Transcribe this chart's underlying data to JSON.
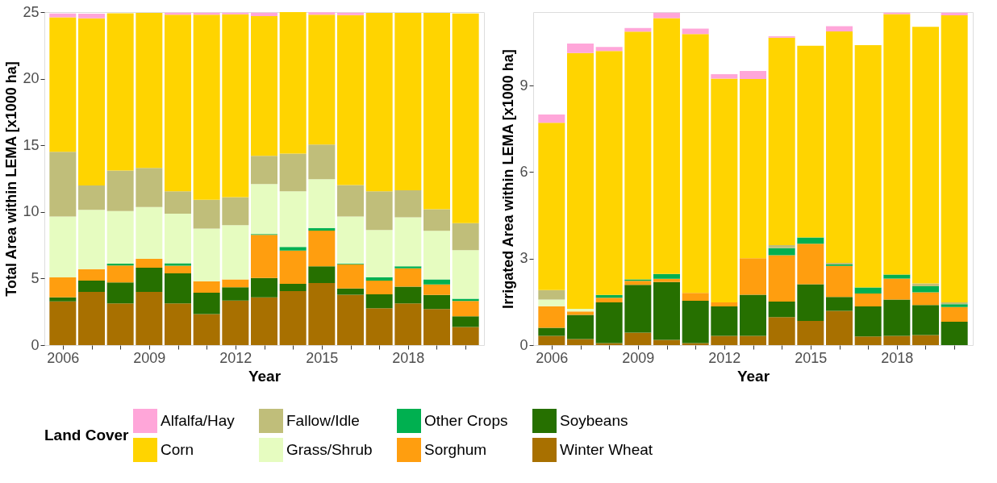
{
  "chart_data": [
    {
      "type": "bar",
      "stacked": true,
      "xlabel": "Year",
      "ylabel": "Total Area within LEMA [x1000 ha]",
      "legend_title": "Land Cover",
      "legend": "bottom",
      "grid": false,
      "x": [
        2006,
        2007,
        2008,
        2009,
        2010,
        2011,
        2012,
        2013,
        2014,
        2015,
        2016,
        2017,
        2018,
        2019,
        2020
      ],
      "xlim": [
        2005.5,
        2020.5
      ],
      "xticks": [
        2006,
        {
          "value": 2007,
          "label": null
        },
        {
          "value": 2008,
          "label": null
        },
        2009,
        {
          "value": 2010,
          "label": null
        },
        {
          "value": 2011,
          "label": null
        },
        2012,
        {
          "value": 2013,
          "label": null
        },
        {
          "value": 2014,
          "label": null
        },
        2015,
        {
          "value": 2016,
          "label": null
        },
        {
          "value": 2017,
          "label": null
        },
        2018,
        {
          "value": 2019,
          "label": null
        },
        {
          "value": 2020,
          "label": null
        }
      ],
      "ylim": [
        0,
        25
      ],
      "yticks": [
        0,
        5,
        10,
        15,
        20,
        25
      ],
      "series": [
        {
          "name": "Winter Wheat",
          "color": "#a87000",
          "values": [
            3.28,
            3.99,
            3.14,
            3.99,
            3.14,
            2.33,
            3.34,
            3.58,
            4.05,
            4.66,
            3.79,
            2.77,
            3.14,
            2.71,
            1.36
          ]
        },
        {
          "name": "Soybeans",
          "color": "#267000",
          "values": [
            0.3,
            0.85,
            1.56,
            1.82,
            2.24,
            1.6,
            1.01,
            1.46,
            0.55,
            1.25,
            0.46,
            1.04,
            1.25,
            1.06,
            0.81
          ]
        },
        {
          "name": "Sorghum",
          "color": "#ff9e0f",
          "values": [
            1.5,
            0.87,
            1.28,
            0.67,
            0.59,
            0.87,
            0.59,
            3.24,
            2.49,
            2.69,
            1.82,
            1.03,
            1.38,
            0.78,
            1.15
          ]
        },
        {
          "name": "Other Crops",
          "color": "#00b050",
          "values": [
            0,
            0,
            0.14,
            0,
            0.18,
            0,
            0,
            0.06,
            0.28,
            0.19,
            0.06,
            0.26,
            0.14,
            0.39,
            0.16
          ]
        },
        {
          "name": "Grass/Shrub",
          "color": "#e6fcc0",
          "values": [
            4.58,
            4.45,
            3.95,
            3.88,
            3.71,
            3.94,
            4.07,
            3.75,
            4.17,
            3.66,
            3.53,
            3.54,
            3.69,
            3.64,
            3.65
          ]
        },
        {
          "name": "Fallow/Idle",
          "color": "#c0be7a",
          "values": [
            4.85,
            1.82,
            3.04,
            2.94,
            1.68,
            2.17,
            2.1,
            2.12,
            2.83,
            2.61,
            2.36,
            2.9,
            2.02,
            1.62,
            2.02
          ]
        },
        {
          "name": "Corn",
          "color": "#ffd400",
          "values": [
            10.09,
            12.55,
            11.8,
            11.64,
            13.26,
            13.89,
            13.73,
            10.49,
            10.63,
            9.74,
            12.76,
            13.4,
            13.32,
            14.74,
            15.75
          ]
        },
        {
          "name": "Alfalfa/Hay",
          "color": "#ffa6d9",
          "values": [
            0.3,
            0.35,
            null,
            null,
            0.16,
            0.16,
            0.12,
            0.26,
            0,
            0.18,
            0.18,
            0,
            0,
            0,
            0
          ]
        }
      ]
    },
    {
      "type": "bar",
      "stacked": true,
      "xlabel": "Year",
      "ylabel": "Irrigated Area within LEMA [x1000 ha]",
      "legend": "bottom",
      "grid": false,
      "x": [
        2006,
        2007,
        2008,
        2009,
        2010,
        2011,
        2012,
        2013,
        2014,
        2015,
        2016,
        2017,
        2018,
        2019,
        2020
      ],
      "xlim": [
        2005.5,
        2020.5
      ],
      "xticks": [
        2006,
        {
          "value": 2007,
          "label": null
        },
        {
          "value": 2008,
          "label": null
        },
        2009,
        {
          "value": 2010,
          "label": null
        },
        {
          "value": 2011,
          "label": null
        },
        2012,
        {
          "value": 2013,
          "label": null
        },
        {
          "value": 2014,
          "label": null
        },
        2015,
        {
          "value": 2016,
          "label": null
        },
        {
          "value": 2017,
          "label": null
        },
        2018,
        {
          "value": 2019,
          "label": null
        },
        {
          "value": 2020,
          "label": null
        }
      ],
      "ylim": [
        0,
        11.55
      ],
      "yticks": [
        0,
        3,
        6,
        9
      ],
      "series": [
        {
          "name": "Winter Wheat",
          "color": "#a87000",
          "values": [
            0.32,
            0.21,
            0.07,
            0.43,
            0.18,
            0.07,
            0.32,
            0.32,
            0.97,
            0.84,
            1.19,
            0.3,
            0.32,
            0.35,
            0
          ]
        },
        {
          "name": "Soybeans",
          "color": "#267000",
          "values": [
            0.28,
            0.84,
            1.41,
            1.66,
            2.01,
            1.47,
            1.02,
            1.43,
            0.54,
            1.27,
            0.48,
            1.04,
            1.26,
            1.04,
            0.81
          ]
        },
        {
          "name": "Sorghum",
          "color": "#ff9e0f",
          "values": [
            0.75,
            0.12,
            0.16,
            0.14,
            0.11,
            0.27,
            0.14,
            1.26,
            1.61,
            1.41,
            1.08,
            0.45,
            0.73,
            0.44,
            0.51
          ]
        },
        {
          "name": "Other Crops",
          "color": "#00b050",
          "values": [
            0,
            0,
            0.1,
            0.05,
            0.17,
            0,
            0,
            0,
            0.24,
            0.21,
            0.05,
            0.21,
            0.14,
            0.21,
            0.1
          ]
        },
        {
          "name": "Grass/Shrub",
          "color": "#e6fcc0",
          "values": [
            0.23,
            0.09,
            0,
            0,
            0,
            0,
            0,
            0,
            0,
            0,
            0,
            0,
            0,
            0,
            0
          ]
        },
        {
          "name": "Fallow/Idle",
          "color": "#c0be7a",
          "values": [
            0.33,
            0,
            0,
            0,
            0,
            0,
            0,
            0,
            0.11,
            0,
            0.05,
            0,
            0,
            0.1,
            0.06
          ]
        },
        {
          "name": "Corn",
          "color": "#ffd400",
          "values": [
            5.8,
            8.87,
            8.46,
            8.59,
            8.87,
            8.98,
            7.76,
            6.22,
            7.19,
            6.65,
            8.03,
            8.4,
            9.03,
            8.9,
            9.96
          ]
        },
        {
          "name": "Alfalfa/Hay",
          "color": "#ffa6d9",
          "values": [
            0.29,
            0.33,
            0.14,
            0.13,
            0.19,
            0.19,
            0.16,
            0.28,
            0.05,
            null,
            0.18,
            null,
            0.05,
            0,
            0.09
          ]
        }
      ]
    }
  ]
}
